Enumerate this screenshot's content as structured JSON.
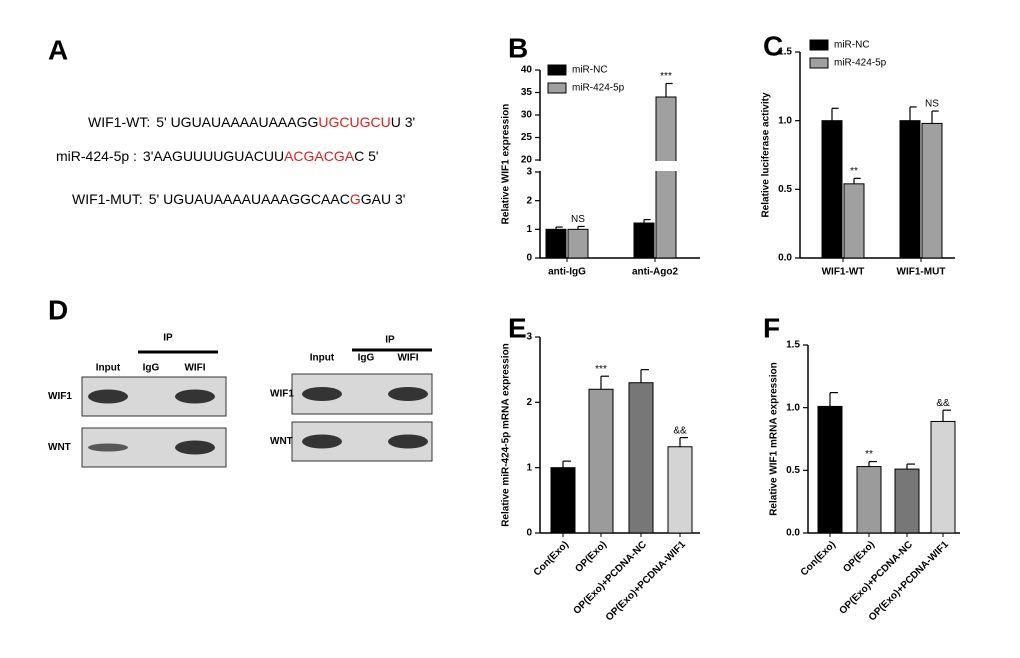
{
  "panel_labels": [
    "A",
    "B",
    "C",
    "D",
    "E",
    "F"
  ],
  "sequences": [
    {
      "label": "WIF1-WT:",
      "parts": [
        "5' UGUAUAAAAUAAAGG",
        "UGCUGCU",
        "U 3'"
      ]
    },
    {
      "label": "miR-424-5p :",
      "parts": [
        "3'AAGUUUUGUACUU",
        "ACGACGA",
        "C 5'"
      ]
    },
    {
      "label": "WIF1-MUT:",
      "parts": [
        "5' UGUAUAAAAUAAAGGCAAC",
        "G",
        "GAU 3'"
      ]
    }
  ],
  "blots": [
    {
      "ip": "IP",
      "lanes": [
        "Input",
        "IgG",
        "WIFI"
      ],
      "rows": [
        "WIF1",
        "WNT"
      ]
    },
    {
      "ip": "IP",
      "lanes": [
        "Input",
        "IgG",
        "WIFI"
      ],
      "rows": [
        "WIF1",
        "WNT"
      ]
    }
  ],
  "chart_data": [
    {
      "type": "bar",
      "y_label": "Relative WIF1  expression",
      "categories": [
        "anti-IgG",
        "anti-Ago2"
      ],
      "series": [
        {
          "name": "miR-NC",
          "color": "#000000",
          "values": [
            1.0,
            1.22
          ],
          "errors": [
            0.08,
            0.12
          ]
        },
        {
          "name": "miR-424-5p",
          "color": "#a0a0a0",
          "values": [
            1.0,
            34
          ],
          "errors": [
            0.1,
            3
          ],
          "annotations": [
            "NS",
            "***"
          ]
        }
      ],
      "ylim": [
        0,
        40
      ],
      "ybreak": [
        3,
        20
      ],
      "yticks": [
        0,
        1,
        2,
        3,
        20,
        25,
        30,
        35,
        40
      ],
      "legend": "upper left"
    },
    {
      "type": "bar",
      "y_label": "Relative luciferase activity",
      "categories": [
        "WIF1-WT",
        "WIF1-MUT"
      ],
      "series": [
        {
          "name": "miR-NC",
          "color": "#000000",
          "values": [
            1.0,
            1.0
          ],
          "errors": [
            0.09,
            0.1
          ]
        },
        {
          "name": "miR-424-5p",
          "color": "#a0a0a0",
          "values": [
            0.54,
            0.98
          ],
          "errors": [
            0.04,
            0.09
          ],
          "annotations": [
            "**",
            "NS"
          ]
        }
      ],
      "ylim": [
        0,
        1.5
      ],
      "yticks": [
        {
          "value": 0,
          "label": "0.0"
        },
        {
          "value": 0.5,
          "label": "0.5"
        },
        {
          "value": 1,
          "label": "1.0"
        },
        {
          "value": 1.5,
          "label": "1.5"
        }
      ],
      "legend": "upper left"
    },
    {
      "type": "bar",
      "y_label": "Relative miR-424-5p mRNA expression",
      "categories": [
        "Con(Exo)",
        "OP(Exo)",
        "OP(Exo)+PCDNA-NC",
        "OP(Exo)+PCDNA-WIF1"
      ],
      "values": [
        1.0,
        2.2,
        2.3,
        1.32
      ],
      "errors": [
        0.1,
        0.2,
        0.2,
        0.14
      ],
      "colors": [
        "#000000",
        "#9b9b9b",
        "#777777",
        "#d4d4d4"
      ],
      "annotations": [
        null,
        "***",
        null,
        "&&"
      ],
      "ylim": [
        0,
        3
      ],
      "yticks": [
        0,
        1,
        2,
        3
      ]
    },
    {
      "type": "bar",
      "y_label": "Relative WIF1 mRNA expression",
      "categories": [
        "Con(Exo)",
        "OP(Exo)",
        "OP(Exo)+PCDNA-NC",
        "OP(Exo)+PCDNA-WIF1"
      ],
      "values": [
        1.01,
        0.53,
        0.51,
        0.89
      ],
      "errors": [
        0.11,
        0.04,
        0.04,
        0.09
      ],
      "colors": [
        "#000000",
        "#9b9b9b",
        "#777777",
        "#d4d4d4"
      ],
      "annotations": [
        null,
        "**",
        null,
        "&&"
      ],
      "ylim": [
        0,
        1.5
      ],
      "yticks": [
        {
          "value": 0,
          "label": "0.0"
        },
        {
          "value": 0.5,
          "label": "0.5"
        },
        {
          "value": 1,
          "label": "1.0"
        },
        {
          "value": 1.5,
          "label": "1.5"
        }
      ]
    }
  ]
}
